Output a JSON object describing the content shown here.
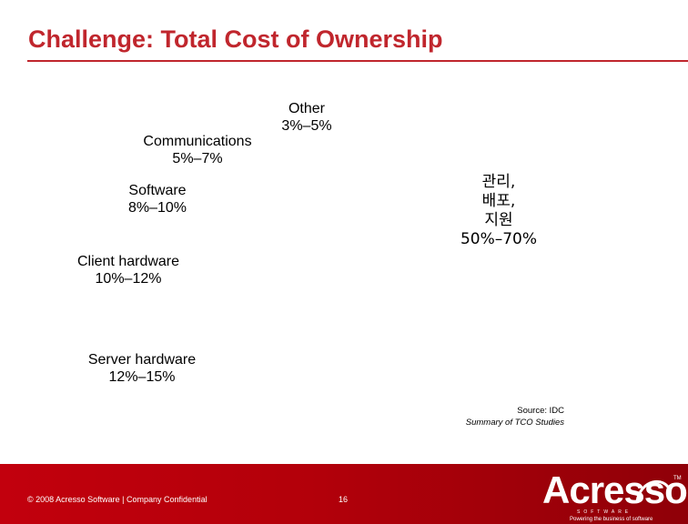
{
  "title": "Challenge: Total Cost of Ownership",
  "segments": {
    "other": {
      "name": "Other",
      "range": "3%–5%"
    },
    "communications": {
      "name": "Communications",
      "range": "5%–7%"
    },
    "software": {
      "name": "Software",
      "range": "8%–10%"
    },
    "client_hardware": {
      "name": "Client hardware",
      "range": "10%–12%"
    },
    "server_hardware": {
      "name": "Server hardware",
      "range": "12%–15%"
    },
    "management": {
      "line1": "관리,",
      "line2": "배포,",
      "line3": "지원",
      "range": "50%–70%"
    }
  },
  "source": {
    "line1": "Source: IDC",
    "line2": "Summary of TCO Studies"
  },
  "footer": {
    "copyright": "© 2008 Acresso Software | Company Confidential",
    "page_number": "16"
  },
  "logo": {
    "wordmark": "Acresso",
    "trademark": "TM",
    "subtitle": "SOFTWARE",
    "tagline": "Powering the business of software"
  },
  "colors": {
    "title": "#c0262d",
    "footer_bar": "#b3000a"
  }
}
